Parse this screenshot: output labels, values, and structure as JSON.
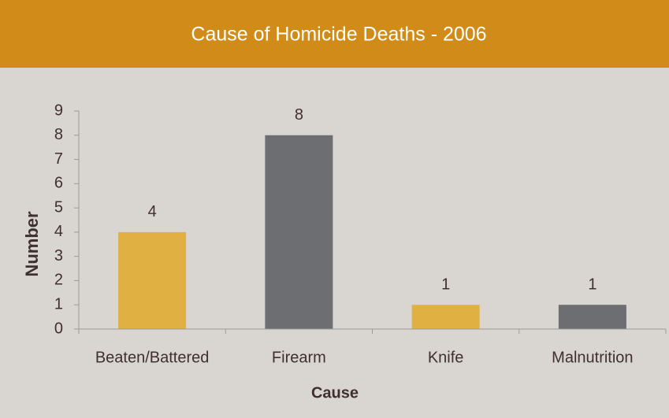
{
  "chart_data": {
    "type": "bar",
    "title": "Cause of Homicide Deaths - 2006",
    "categories": [
      "Beaten/Battered",
      "Firearm",
      "Knife",
      "Malnutrition"
    ],
    "values": [
      4,
      8,
      1,
      1
    ],
    "colors": [
      "#e0b043",
      "#6d6e71",
      "#e0b043",
      "#6d6e71"
    ],
    "x_label": "Cause",
    "y_label": "Number",
    "ylim": [
      0,
      9
    ],
    "yticks": [
      0,
      1,
      2,
      3,
      4,
      5,
      6,
      7,
      8,
      9
    ],
    "grid": false
  }
}
